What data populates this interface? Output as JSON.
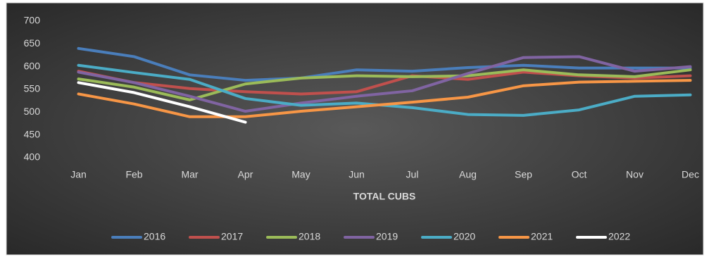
{
  "chart_data": {
    "type": "line",
    "title": "TOTAL CUBS",
    "categories": [
      "Jan",
      "Feb",
      "Mar",
      "Apr",
      "May",
      "Jun",
      "Jul",
      "Aug",
      "Sep",
      "Oct",
      "Nov",
      "Dec"
    ],
    "ylim": [
      400,
      700
    ],
    "yticks": [
      400,
      450,
      500,
      550,
      600,
      650,
      700
    ],
    "grid": false,
    "series": [
      {
        "name": "2016",
        "color": "#4a7ebb",
        "values": [
          640,
          622,
          582,
          570,
          575,
          593,
          590,
          598,
          603,
          597,
          597,
          597
        ]
      },
      {
        "name": "2017",
        "color": "#c0504d",
        "values": [
          590,
          565,
          552,
          545,
          540,
          545,
          580,
          572,
          588,
          580,
          575,
          580
        ]
      },
      {
        "name": "2018",
        "color": "#9bbb59",
        "values": [
          573,
          555,
          527,
          562,
          575,
          580,
          578,
          580,
          593,
          582,
          578,
          593
        ]
      },
      {
        "name": "2019",
        "color": "#8064a2",
        "values": [
          588,
          565,
          535,
          502,
          520,
          535,
          547,
          585,
          620,
          622,
          590,
          600
        ]
      },
      {
        "name": "2020",
        "color": "#4bacc6",
        "values": [
          603,
          587,
          572,
          530,
          515,
          520,
          510,
          495,
          493,
          505,
          535,
          538
        ]
      },
      {
        "name": "2021",
        "color": "#f79646",
        "values": [
          540,
          518,
          490,
          490,
          502,
          512,
          522,
          533,
          558,
          566,
          568,
          570
        ]
      },
      {
        "name": "2022",
        "color": "#ffffff",
        "values": [
          565,
          543,
          512,
          478,
          null,
          null,
          null,
          null,
          null,
          null,
          null,
          null
        ]
      }
    ]
  }
}
